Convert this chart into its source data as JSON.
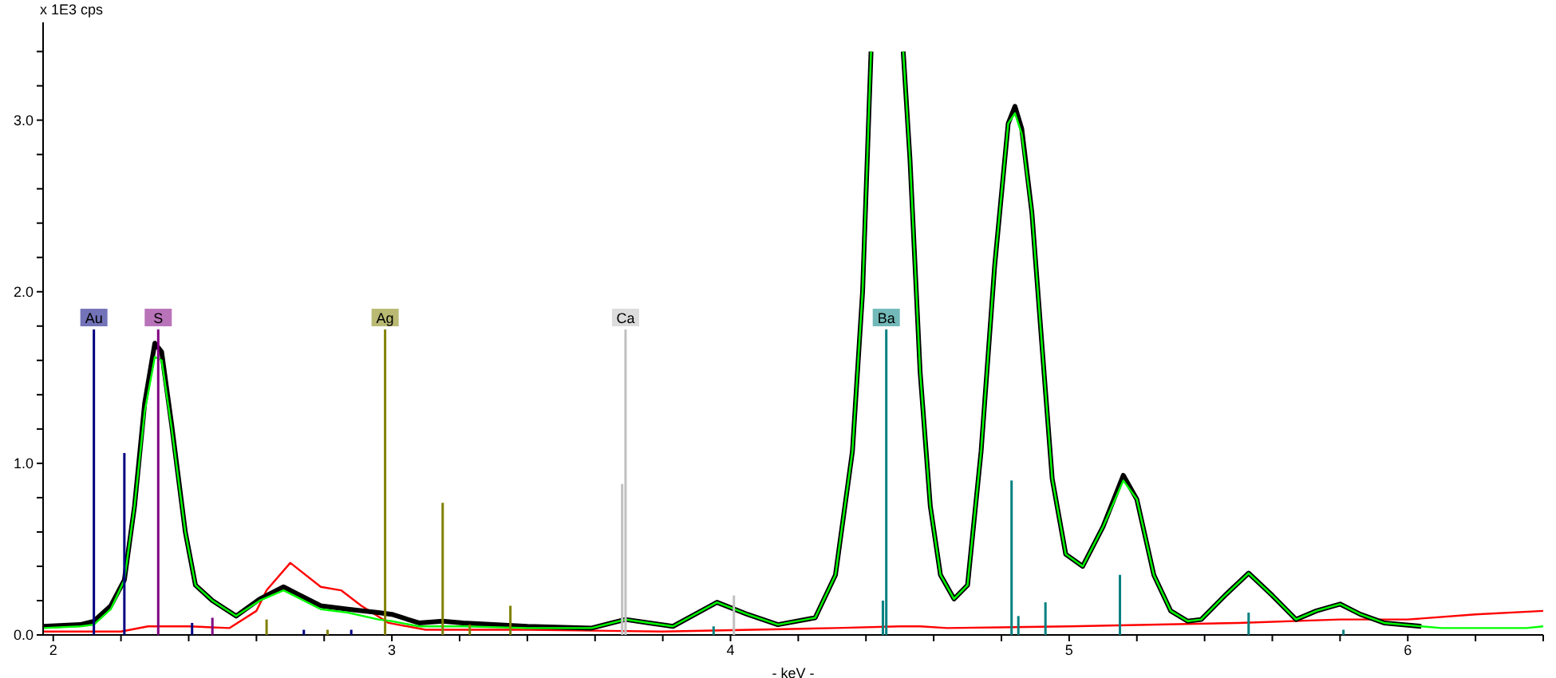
{
  "chart_data": {
    "type": "line",
    "xlabel": "- keV -",
    "ylabel": "x 1E3 cps",
    "xlim": [
      1.97,
      6.4
    ],
    "ylim": [
      0,
      3.57
    ],
    "xticks": [
      2,
      {
        "value": 2.2,
        "label": null
      },
      {
        "value": 2.4,
        "label": null
      },
      {
        "value": 2.6,
        "label": null
      },
      {
        "value": 2.8,
        "label": null
      },
      3,
      {
        "value": 3.2,
        "label": null
      },
      {
        "value": 3.4,
        "label": null
      },
      {
        "value": 3.6,
        "label": null
      },
      {
        "value": 3.8,
        "label": null
      },
      4,
      {
        "value": 4.2,
        "label": null
      },
      {
        "value": 4.4,
        "label": null
      },
      {
        "value": 4.6,
        "label": null
      },
      {
        "value": 4.8,
        "label": null
      },
      5,
      {
        "value": 5.2,
        "label": null
      },
      {
        "value": 5.4,
        "label": null
      },
      {
        "value": 5.6,
        "label": null
      },
      {
        "value": 5.8,
        "label": null
      },
      6,
      {
        "value": 6.2,
        "label": null
      },
      {
        "value": 6.4,
        "label": null
      }
    ],
    "yticks": [
      {
        "value": 0,
        "label": "0.0"
      },
      {
        "value": 0.2,
        "label": null
      },
      {
        "value": 0.4,
        "label": null
      },
      {
        "value": 0.6,
        "label": null
      },
      {
        "value": 0.8,
        "label": null
      },
      {
        "value": 1,
        "label": "1.0"
      },
      {
        "value": 1.2,
        "label": null
      },
      {
        "value": 1.4,
        "label": null
      },
      {
        "value": 1.6,
        "label": null
      },
      {
        "value": 1.8,
        "label": null
      },
      {
        "value": 2,
        "label": "2.0"
      },
      {
        "value": 2.2,
        "label": null
      },
      {
        "value": 2.4,
        "label": null
      },
      {
        "value": 2.6,
        "label": null
      },
      {
        "value": 2.8,
        "label": null
      },
      {
        "value": 3,
        "label": "3.0"
      },
      {
        "value": 3.2,
        "label": null
      },
      {
        "value": 3.4,
        "label": null
      }
    ],
    "marker": "none",
    "series": [
      {
        "color": "#ff0000",
        "x": [
          1.97,
          2.2,
          2.28,
          2.4,
          2.52,
          2.6,
          2.63,
          2.7,
          2.79,
          2.85,
          2.91,
          2.99,
          3.1,
          3.4,
          3.8,
          4.31,
          4.5,
          4.56,
          4.64,
          5.0,
          5.5,
          5.8,
          6.0,
          6.2,
          6.4
        ],
        "values": [
          0.02,
          0.02,
          0.05,
          0.05,
          0.04,
          0.14,
          0.26,
          0.42,
          0.28,
          0.26,
          0.17,
          0.07,
          0.03,
          0.03,
          0.02,
          0.04,
          0.05,
          0.05,
          0.04,
          0.05,
          0.07,
          0.09,
          0.09,
          0.12,
          0.14
        ]
      },
      {
        "color": "#000000",
        "x": [
          1.97,
          2.08,
          2.12,
          2.17,
          2.21,
          2.24,
          2.27,
          2.3,
          2.32,
          2.35,
          2.39,
          2.42,
          2.47,
          2.54,
          2.61,
          2.68,
          2.72,
          2.79,
          2.87,
          2.96,
          3.0,
          3.08,
          3.15,
          3.21,
          3.4,
          3.59,
          3.69,
          3.76,
          3.83,
          3.96,
          4.05,
          4.14,
          4.25,
          4.31,
          4.36,
          4.39,
          4.415,
          4.465,
          4.51,
          4.53,
          4.56,
          4.59,
          4.62,
          4.66,
          4.7,
          4.74,
          4.78,
          4.82,
          4.84,
          4.86,
          4.89,
          4.92,
          4.95,
          4.99,
          5.04,
          5.1,
          5.16,
          5.2,
          5.25,
          5.3,
          5.35,
          5.39,
          5.46,
          5.53,
          5.6,
          5.67,
          5.73,
          5.8,
          5.86,
          5.93,
          6.04
        ],
        "values": [
          0.05,
          0.06,
          0.08,
          0.17,
          0.32,
          0.75,
          1.35,
          1.7,
          1.65,
          1.22,
          0.6,
          0.29,
          0.2,
          0.11,
          0.21,
          0.28,
          0.24,
          0.17,
          0.15,
          0.13,
          0.12,
          0.07,
          0.08,
          0.07,
          0.05,
          0.04,
          0.09,
          0.07,
          0.05,
          0.19,
          0.12,
          0.06,
          0.1,
          0.35,
          1.07,
          2.0,
          3.4,
          null,
          3.4,
          2.77,
          1.53,
          0.75,
          0.35,
          0.21,
          0.29,
          1.07,
          2.15,
          2.98,
          3.08,
          2.95,
          2.46,
          1.68,
          0.91,
          0.47,
          0.4,
          0.63,
          0.93,
          0.79,
          0.35,
          0.14,
          0.08,
          0.09,
          0.23,
          0.36,
          0.23,
          0.09,
          0.14,
          0.18,
          0.12,
          0.07,
          0.05
        ]
      },
      {
        "color": "#00ff00",
        "x": [
          1.97,
          2.08,
          2.12,
          2.17,
          2.21,
          2.24,
          2.27,
          2.3,
          2.32,
          2.35,
          2.39,
          2.42,
          2.47,
          2.54,
          2.61,
          2.68,
          2.72,
          2.79,
          2.87,
          2.96,
          3.0,
          3.08,
          3.15,
          3.21,
          3.4,
          3.59,
          3.69,
          3.76,
          3.83,
          3.96,
          4.05,
          4.14,
          4.25,
          4.31,
          4.36,
          4.39,
          4.415,
          4.465,
          4.51,
          4.53,
          4.56,
          4.59,
          4.62,
          4.66,
          4.7,
          4.74,
          4.78,
          4.82,
          4.84,
          4.86,
          4.89,
          4.92,
          4.95,
          4.99,
          5.04,
          5.1,
          5.16,
          5.2,
          5.25,
          5.3,
          5.35,
          5.39,
          5.46,
          5.53,
          5.6,
          5.67,
          5.73,
          5.8,
          5.86,
          5.93,
          6.04,
          6.1,
          6.35,
          6.4
        ],
        "values": [
          0.04,
          0.05,
          0.06,
          0.15,
          0.32,
          0.75,
          1.3,
          1.62,
          1.6,
          1.2,
          0.6,
          0.29,
          0.2,
          0.11,
          0.2,
          0.26,
          0.22,
          0.15,
          0.13,
          0.09,
          0.08,
          0.05,
          0.05,
          0.05,
          0.04,
          0.04,
          0.09,
          0.07,
          0.05,
          0.19,
          0.12,
          0.06,
          0.1,
          0.35,
          1.07,
          2.0,
          3.4,
          null,
          3.4,
          2.77,
          1.53,
          0.75,
          0.35,
          0.21,
          0.29,
          1.07,
          2.15,
          2.98,
          3.04,
          2.92,
          2.46,
          1.68,
          0.91,
          0.47,
          0.4,
          0.63,
          0.9,
          0.79,
          0.35,
          0.14,
          0.08,
          0.09,
          0.23,
          0.36,
          0.23,
          0.09,
          0.14,
          0.18,
          0.12,
          0.07,
          0.05,
          0.04,
          0.04,
          0.05
        ]
      },
      {
        "type": "bar",
        "name": "Au",
        "color": "#000080",
        "x": [
          2.12,
          2.21,
          2.41,
          2.74,
          2.88
        ],
        "values": [
          1.78,
          1.06,
          0.07,
          0.03,
          0.03
        ]
      },
      {
        "type": "bar",
        "name": "S",
        "color": "#800080",
        "x": [
          2.31,
          2.47
        ],
        "values": [
          1.78,
          0.1
        ]
      },
      {
        "type": "bar",
        "name": "Ag",
        "color": "#808000",
        "x": [
          2.63,
          2.81,
          2.98,
          3.15,
          3.23,
          3.35
        ],
        "values": [
          0.09,
          0.03,
          1.78,
          0.77,
          0.06,
          0.17
        ]
      },
      {
        "type": "bar",
        "name": "Ca",
        "color": "#c0c0c0",
        "x": [
          3.68,
          3.69,
          4.01
        ],
        "values": [
          0.88,
          1.78,
          0.23
        ]
      },
      {
        "type": "bar",
        "name": "Ba",
        "color": "#008080",
        "x": [
          3.95,
          4.45,
          4.46,
          4.83,
          4.85,
          4.93,
          5.15,
          5.53,
          5.81
        ],
        "values": [
          0.05,
          0.2,
          1.78,
          0.9,
          0.11,
          0.19,
          0.35,
          0.13,
          0.03
        ]
      }
    ]
  }
}
